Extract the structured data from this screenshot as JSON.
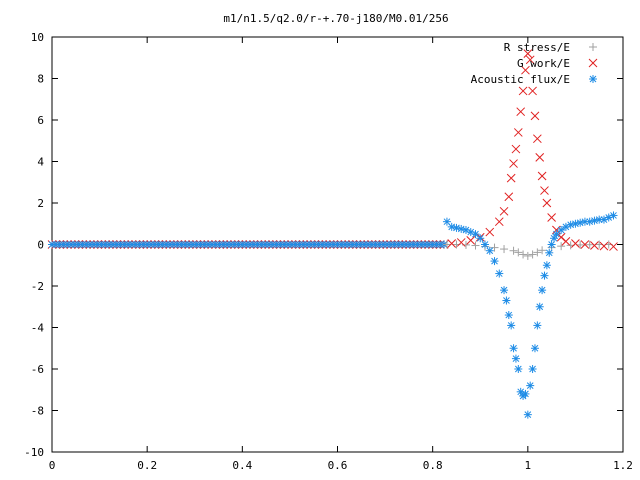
{
  "chart_data": {
    "type": "scatter",
    "title": "m1/n1.5/q2.0/r-+.70-j180/M0.01/256",
    "xlabel": "",
    "ylabel": "",
    "xlim": [
      0,
      1.2
    ],
    "ylim": [
      -10,
      10
    ],
    "x_ticks": [
      0,
      0.2,
      0.4,
      0.6,
      0.8,
      1,
      1.2
    ],
    "x_tick_labels": [
      "0",
      "0.2",
      "0.4",
      "0.6",
      "0.8",
      "1",
      "1.2"
    ],
    "y_ticks": [
      -10,
      -8,
      -6,
      -4,
      -2,
      0,
      2,
      4,
      6,
      8,
      10
    ],
    "y_tick_labels": [
      "-10",
      "-8",
      "-6",
      "-4",
      "-2",
      "0",
      "2",
      "4",
      "6",
      "8",
      "10"
    ],
    "grid": false,
    "legend_position": "top-right",
    "series": [
      {
        "name": "R stress/E",
        "marker": "plus",
        "color": "#a0a0a0",
        "x": [
          0.83,
          0.85,
          0.87,
          0.89,
          0.91,
          0.93,
          0.95,
          0.97,
          0.98,
          0.99,
          1.0,
          1.01,
          1.02,
          1.03,
          1.05,
          1.07,
          1.09,
          1.11,
          1.13,
          1.15,
          1.17
        ],
        "y": [
          0.0,
          0.0,
          -0.02,
          -0.05,
          -0.1,
          -0.15,
          -0.22,
          -0.3,
          -0.38,
          -0.48,
          -0.55,
          -0.48,
          -0.38,
          -0.28,
          -0.15,
          -0.08,
          -0.04,
          -0.02,
          -0.01,
          0.0,
          0.0
        ]
      },
      {
        "name": "G work/E",
        "marker": "cross",
        "color": "#e02020",
        "x": [
          0.84,
          0.86,
          0.88,
          0.9,
          0.92,
          0.94,
          0.95,
          0.96,
          0.965,
          0.97,
          0.975,
          0.98,
          0.985,
          0.99,
          0.995,
          1.0,
          1.005,
          1.01,
          1.015,
          1.02,
          1.025,
          1.03,
          1.035,
          1.04,
          1.05,
          1.06,
          1.07,
          1.08,
          1.1,
          1.12,
          1.14,
          1.16,
          1.18
        ],
        "y": [
          0.05,
          0.1,
          0.2,
          0.35,
          0.6,
          1.1,
          1.6,
          2.3,
          3.2,
          3.9,
          4.6,
          5.4,
          6.4,
          7.4,
          8.4,
          9.2,
          8.9,
          7.4,
          6.2,
          5.1,
          4.2,
          3.3,
          2.6,
          2.0,
          1.3,
          0.7,
          0.35,
          0.15,
          0.05,
          0.0,
          -0.05,
          -0.08,
          -0.1
        ]
      },
      {
        "name": "Acoustic flux/E",
        "marker": "star",
        "color": "#1e8ce6",
        "x": [
          0.83,
          0.84,
          0.85,
          0.86,
          0.87,
          0.88,
          0.89,
          0.9,
          0.91,
          0.92,
          0.93,
          0.94,
          0.95,
          0.955,
          0.96,
          0.965,
          0.97,
          0.975,
          0.98,
          0.985,
          0.99,
          0.995,
          1.0,
          1.005,
          1.01,
          1.015,
          1.02,
          1.025,
          1.03,
          1.035,
          1.04,
          1.045,
          1.05,
          1.055,
          1.06,
          1.07,
          1.08,
          1.09,
          1.1,
          1.11,
          1.12,
          1.13,
          1.14,
          1.15,
          1.16,
          1.17,
          1.18
        ],
        "y": [
          1.1,
          0.85,
          0.8,
          0.75,
          0.7,
          0.6,
          0.5,
          0.3,
          0.0,
          -0.3,
          -0.8,
          -1.4,
          -2.2,
          -2.7,
          -3.4,
          -3.9,
          -5.0,
          -5.5,
          -6.0,
          -7.1,
          -7.3,
          -7.2,
          -8.2,
          -6.8,
          -6.0,
          -5.0,
          -3.9,
          -3.0,
          -2.2,
          -1.5,
          -1.0,
          -0.4,
          0.0,
          0.3,
          0.5,
          0.7,
          0.85,
          0.95,
          1.0,
          1.05,
          1.1,
          1.1,
          1.15,
          1.2,
          1.2,
          1.3,
          1.4
        ]
      }
    ]
  }
}
